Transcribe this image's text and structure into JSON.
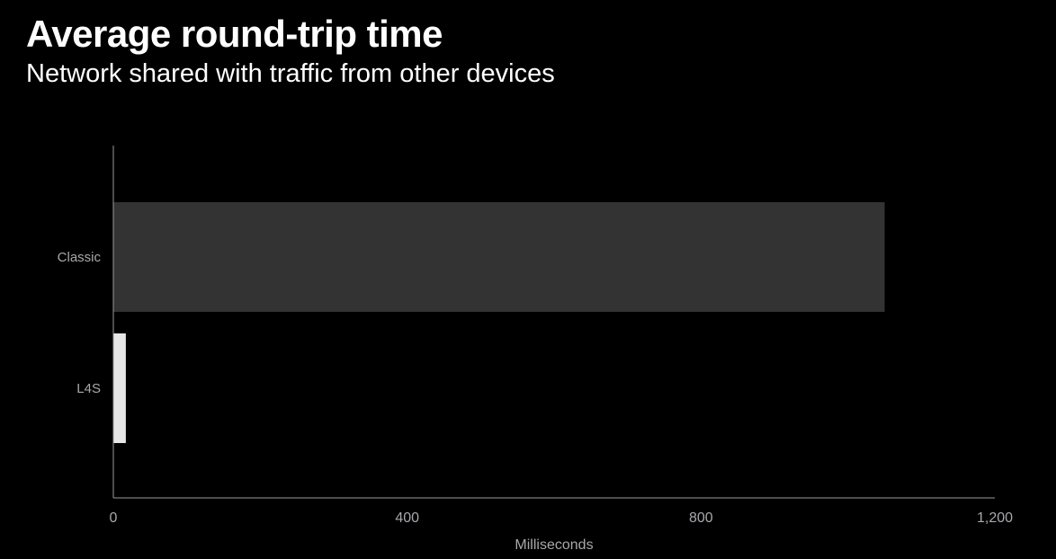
{
  "header": {
    "title": "Average round-trip time",
    "subtitle": "Network shared with traffic from other devices"
  },
  "colors": {
    "background": "#000000",
    "axis": "#9a9a9a",
    "label": "#a8a8ad"
  },
  "chart_data": {
    "type": "bar",
    "orientation": "horizontal",
    "title": "Average round-trip time",
    "subtitle": "Network shared with traffic from other devices",
    "categories": [
      "Classic",
      "L4S"
    ],
    "values": [
      1050,
      17
    ],
    "bar_colors": [
      "#333333",
      "#e6e6e6"
    ],
    "xlabel": "Milliseconds",
    "ylabel": "",
    "xlim": [
      0,
      1200
    ],
    "x_ticks": [
      0,
      400,
      800,
      1200
    ],
    "x_tick_labels": [
      "0",
      "400",
      "800",
      "1,200"
    ],
    "grid": false,
    "legend": "none"
  }
}
